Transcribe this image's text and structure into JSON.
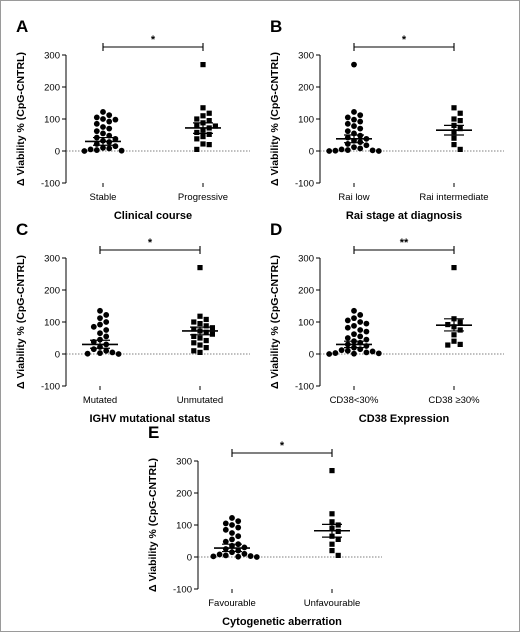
{
  "chart_data": [
    {
      "type": "scatter",
      "panel": "A",
      "ylabel": "Δ Viability % (CpG-CNTRL)",
      "xlabel": "Clinical course",
      "ylim": [
        -100,
        300
      ],
      "yticks": [
        "300",
        "200",
        "100",
        "0",
        "-100"
      ],
      "categories": [
        "Stable",
        "Progressive"
      ],
      "markers": [
        "circle",
        "square"
      ],
      "significance": "*",
      "groups": [
        {
          "name": "Stable",
          "mean": 30,
          "sem_low": 18,
          "sem_high": 42,
          "values": [
            122,
            112,
            105,
            100,
            98,
            92,
            85,
            75,
            70,
            62,
            55,
            48,
            42,
            38,
            32,
            28,
            22,
            15,
            10,
            8,
            5,
            3,
            1,
            0
          ]
        },
        {
          "name": "Progressive",
          "mean": 72,
          "sem_low": 55,
          "sem_high": 88,
          "values": [
            270,
            135,
            118,
            110,
            100,
            95,
            88,
            80,
            78,
            72,
            65,
            58,
            52,
            45,
            38,
            22,
            20,
            5
          ]
        }
      ]
    },
    {
      "type": "scatter",
      "panel": "B",
      "ylabel": "Δ Viability % (CpG-CNTRL)",
      "xlabel": "Rai stage at diagnosis",
      "ylim": [
        -100,
        300
      ],
      "yticks": [
        "300",
        "200",
        "100",
        "0",
        "-100"
      ],
      "categories": [
        "Rai low",
        "Rai intermediate"
      ],
      "markers": [
        "circle",
        "square"
      ],
      "significance": "*",
      "groups": [
        {
          "name": "Rai low",
          "mean": 38,
          "sem_low": 26,
          "sem_high": 50,
          "values": [
            270,
            122,
            112,
            105,
            98,
            92,
            85,
            78,
            70,
            62,
            55,
            48,
            42,
            38,
            32,
            28,
            22,
            18,
            12,
            8,
            5,
            3,
            2,
            1,
            0,
            0
          ]
        },
        {
          "name": "Rai intermediate",
          "mean": 65,
          "sem_low": 50,
          "sem_high": 80,
          "values": [
            135,
            118,
            100,
            95,
            80,
            70,
            60,
            40,
            20,
            5
          ]
        }
      ]
    },
    {
      "type": "scatter",
      "panel": "C",
      "ylabel": "Δ Viability % (CpG-CNTRL)",
      "xlabel": "IGHV mutational status",
      "ylim": [
        -100,
        300
      ],
      "yticks": [
        "300",
        "200",
        "100",
        "0",
        "-100"
      ],
      "categories": [
        "Mutated",
        "Unmutated"
      ],
      "markers": [
        "circle",
        "square"
      ],
      "significance": "*",
      "groups": [
        {
          "name": "Mutated",
          "mean": 30,
          "sem_low": 18,
          "sem_high": 43,
          "values": [
            135,
            122,
            112,
            100,
            92,
            85,
            75,
            65,
            55,
            45,
            38,
            30,
            22,
            15,
            10,
            5,
            3,
            1,
            0
          ]
        },
        {
          "name": "Unmutated",
          "mean": 72,
          "sem_low": 60,
          "sem_high": 84,
          "values": [
            270,
            118,
            108,
            100,
            95,
            88,
            82,
            78,
            72,
            68,
            62,
            55,
            50,
            42,
            35,
            28,
            20,
            10,
            5
          ]
        }
      ]
    },
    {
      "type": "scatter",
      "panel": "D",
      "ylabel": "Δ Viability % (CpG-CNTRL)",
      "xlabel": "CD38 Expression",
      "ylim": [
        -100,
        300
      ],
      "yticks": [
        "300",
        "200",
        "100",
        "0",
        "-100"
      ],
      "categories": [
        "CD38<30%",
        "CD38 ≥30%"
      ],
      "markers": [
        "circle",
        "square"
      ],
      "significance": "**",
      "groups": [
        {
          "name": "CD38<30%",
          "mean": 30,
          "sem_low": 20,
          "sem_high": 40,
          "values": [
            135,
            122,
            112,
            105,
            100,
            95,
            88,
            82,
            75,
            70,
            62,
            55,
            50,
            45,
            40,
            35,
            30,
            25,
            20,
            15,
            12,
            10,
            8,
            5,
            3,
            2,
            1,
            0
          ]
        },
        {
          "name": "CD38 ≥30%",
          "mean": 90,
          "sem_low": 72,
          "sem_high": 110,
          "values": [
            270,
            110,
            100,
            92,
            85,
            75,
            60,
            40,
            30,
            28
          ]
        }
      ]
    },
    {
      "type": "scatter",
      "panel": "E",
      "ylabel": "Δ Viability % (CpG-CNTRL)",
      "xlabel": "Cytogenetic aberration",
      "ylim": [
        -100,
        300
      ],
      "yticks": [
        "300",
        "200",
        "100",
        "0",
        "-100"
      ],
      "categories": [
        "Favourable",
        "Unfavourable"
      ],
      "markers": [
        "circle",
        "square"
      ],
      "significance": "*",
      "groups": [
        {
          "name": "Favourable",
          "mean": 28,
          "sem_low": 17,
          "sem_high": 40,
          "values": [
            122,
            112,
            105,
            100,
            92,
            85,
            75,
            65,
            55,
            48,
            40,
            35,
            30,
            25,
            20,
            15,
            10,
            8,
            5,
            3,
            2,
            1,
            0
          ]
        },
        {
          "name": "Unfavourable",
          "mean": 82,
          "sem_low": 62,
          "sem_high": 102,
          "values": [
            270,
            135,
            110,
            100,
            90,
            80,
            65,
            55,
            40,
            20,
            5
          ]
        }
      ]
    }
  ]
}
